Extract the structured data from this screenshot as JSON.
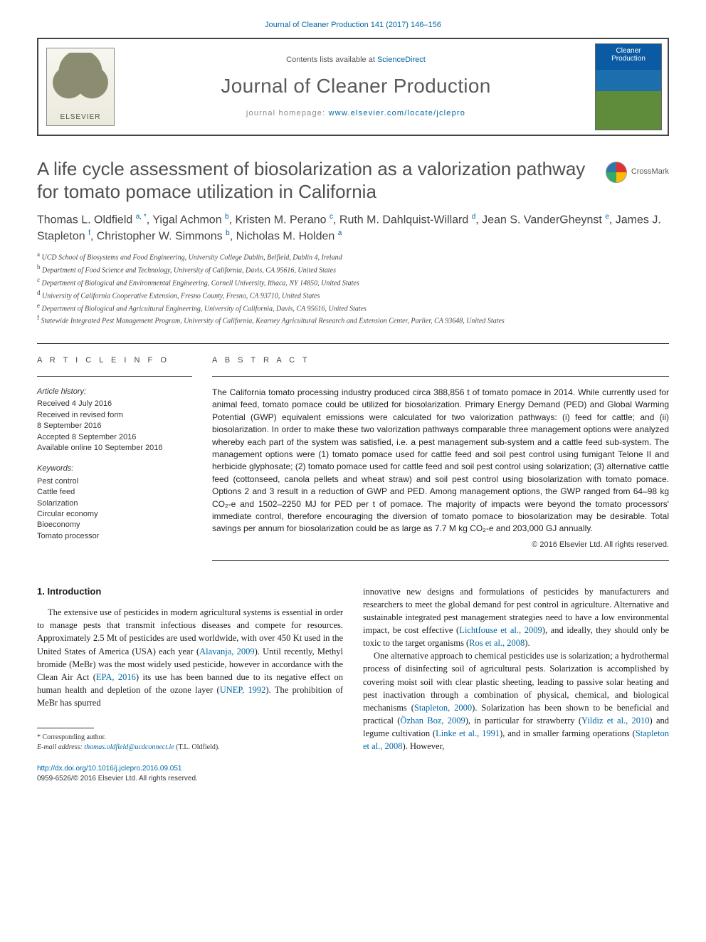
{
  "colors": {
    "link": "#0066a3",
    "text": "#1a1a1a",
    "muted": "#555555",
    "header_gray": "#505050",
    "border": "#333333"
  },
  "typography": {
    "body_family": "Times New Roman",
    "ui_family": "Arial",
    "title_fontsize_pt": 20,
    "journal_fontsize_pt": 21,
    "body_fontsize_pt": 9.5,
    "abstract_fontsize_pt": 9,
    "affil_fontsize_pt": 7.5
  },
  "top_citation": "Journal of Cleaner Production 141 (2017) 146–156",
  "header": {
    "contents_prefix": "Contents lists available at ",
    "contents_link": "ScienceDirect",
    "journal_name": "Journal of Cleaner Production",
    "homepage_prefix": "journal homepage: ",
    "homepage_url": "www.elsevier.com/locate/jclepro",
    "publisher_logo_alt": "Elsevier tree logo",
    "cover_alt": "Cleaner Production cover"
  },
  "crossmark_label": "CrossMark",
  "article": {
    "title": "A life cycle assessment of biosolarization as a valorization pathway for tomato pomace utilization in California",
    "authors_html": [
      {
        "name": "Thomas L. Oldfield",
        "sup": "a, *"
      },
      {
        "name": "Yigal Achmon",
        "sup": "b"
      },
      {
        "name": "Kristen M. Perano",
        "sup": "c"
      },
      {
        "name": "Ruth M. Dahlquist-Willard",
        "sup": "d"
      },
      {
        "name": "Jean S. VanderGheynst",
        "sup": "e"
      },
      {
        "name": "James J. Stapleton",
        "sup": "f"
      },
      {
        "name": "Christopher W. Simmons",
        "sup": "b"
      },
      {
        "name": "Nicholas M. Holden",
        "sup": "a"
      }
    ],
    "affiliations": [
      {
        "key": "a",
        "text": "UCD School of Biosystems and Food Engineering, University College Dublin, Belfield, Dublin 4, Ireland"
      },
      {
        "key": "b",
        "text": "Department of Food Science and Technology, University of California, Davis, CA 95616, United States"
      },
      {
        "key": "c",
        "text": "Department of Biological and Environmental Engineering, Cornell University, Ithaca, NY 14850, United States"
      },
      {
        "key": "d",
        "text": "University of California Cooperative Extension, Fresno County, Fresno, CA 93710, United States"
      },
      {
        "key": "e",
        "text": "Department of Biological and Agricultural Engineering, University of California, Davis, CA 95616, United States"
      },
      {
        "key": "f",
        "text": "Statewide Integrated Pest Management Program, University of California, Kearney Agricultural Research and Extension Center, Parlier, CA 93648, United States"
      }
    ]
  },
  "info": {
    "label": "A R T I C L E   I N F O",
    "history_heading": "Article history:",
    "history": [
      "Received 4 July 2016",
      "Received in revised form",
      "8 September 2016",
      "Accepted 8 September 2016",
      "Available online 10 September 2016"
    ],
    "keywords_heading": "Keywords:",
    "keywords": [
      "Pest control",
      "Cattle feed",
      "Solarization",
      "Circular economy",
      "Bioeconomy",
      "Tomato processor"
    ]
  },
  "abstract": {
    "label": "A B S T R A C T",
    "text": "The California tomato processing industry produced circa 388,856 t of tomato pomace in 2014. While currently used for animal feed, tomato pomace could be utilized for biosolarization. Primary Energy Demand (PED) and Global Warming Potential (GWP) equivalent emissions were calculated for two valorization pathways: (i) feed for cattle; and (ii) biosolarization. In order to make these two valorization pathways comparable three management options were analyzed whereby each part of the system was satisfied, i.e. a pest management sub-system and a cattle feed sub-system. The management options were (1) tomato pomace used for cattle feed and soil pest control using fumigant Telone II and herbicide glyphosate; (2) tomato pomace used for cattle feed and soil pest control using solarization; (3) alternative cattle feed (cottonseed, canola pellets and wheat straw) and soil pest control using biosolarization with tomato pomace. Options 2 and 3 result in a reduction of GWP and PED. Among management options, the GWP ranged from 64–98 kg CO₂-e and 1502–2250 MJ for PED per t of pomace. The majority of impacts were beyond the tomato processors' immediate control, therefore encouraging the diversion of tomato pomace to biosolarization may be desirable. Total savings per annum for biosolarization could be as large as 7.7 M kg CO₂-e and 203,000 GJ annually.",
    "copyright": "© 2016 Elsevier Ltd. All rights reserved."
  },
  "intro": {
    "heading": "1.  Introduction",
    "left_paragraph": "The extensive use of pesticides in modern agricultural systems is essential in order to manage pests that transmit infectious diseases and compete for resources. Approximately 2.5 Mt of pesticides are used worldwide, with over 450 Kt used in the United States of America (USA) each year (Alavanja, 2009). Until recently, Methyl bromide (MeBr) was the most widely used pesticide, however in accordance with the Clean Air Act (EPA, 2016) its use has been banned due to its negative effect on human health and depletion of the ozone layer (UNEP, 1992). The prohibition of MeBr has spurred",
    "right_p1": "innovative new designs and formulations of pesticides by manufacturers and researchers to meet the global demand for pest control in agriculture. Alternative and sustainable integrated pest management strategies need to have a low environmental impact, be cost effective (Lichtfouse et al., 2009), and ideally, they should only be toxic to the target organisms (Ros et al., 2008).",
    "right_p2": "One alternative approach to chemical pesticides use is solarization; a hydrothermal process of disinfecting soil of agricultural pests. Solarization is accomplished by covering moist soil with clear plastic sheeting, leading to passive solar heating and pest inactivation through a combination of physical, chemical, and biological mechanisms (Stapleton, 2000). Solarization has been shown to be beneficial and practical (Özhan Boz, 2009), in particular for strawberry (Yildiz et al., 2010) and legume cultivation (Linke et al., 1991), and in smaller farming operations (Stapleton et al., 2008). However,",
    "citations": [
      "Alavanja, 2009",
      "EPA, 2016",
      "UNEP, 1992",
      "Lichtfouse et al., 2009",
      "Ros et al., 2008",
      "Stapleton, 2000",
      "Özhan Boz, 2009",
      "Yildiz et al., 2010",
      "Linke et al., 1991",
      "Stapleton et al., 2008"
    ]
  },
  "footnote": {
    "corresponding": "* Corresponding author.",
    "email_label": "E-mail address: ",
    "email": "thomas.oldfield@ucdconnect.ie",
    "email_suffix": " (T.L. Oldfield)."
  },
  "doi": {
    "url": "http://dx.doi.org/10.1016/j.jclepro.2016.09.051",
    "issn_line": "0959-6526/© 2016 Elsevier Ltd. All rights reserved."
  }
}
